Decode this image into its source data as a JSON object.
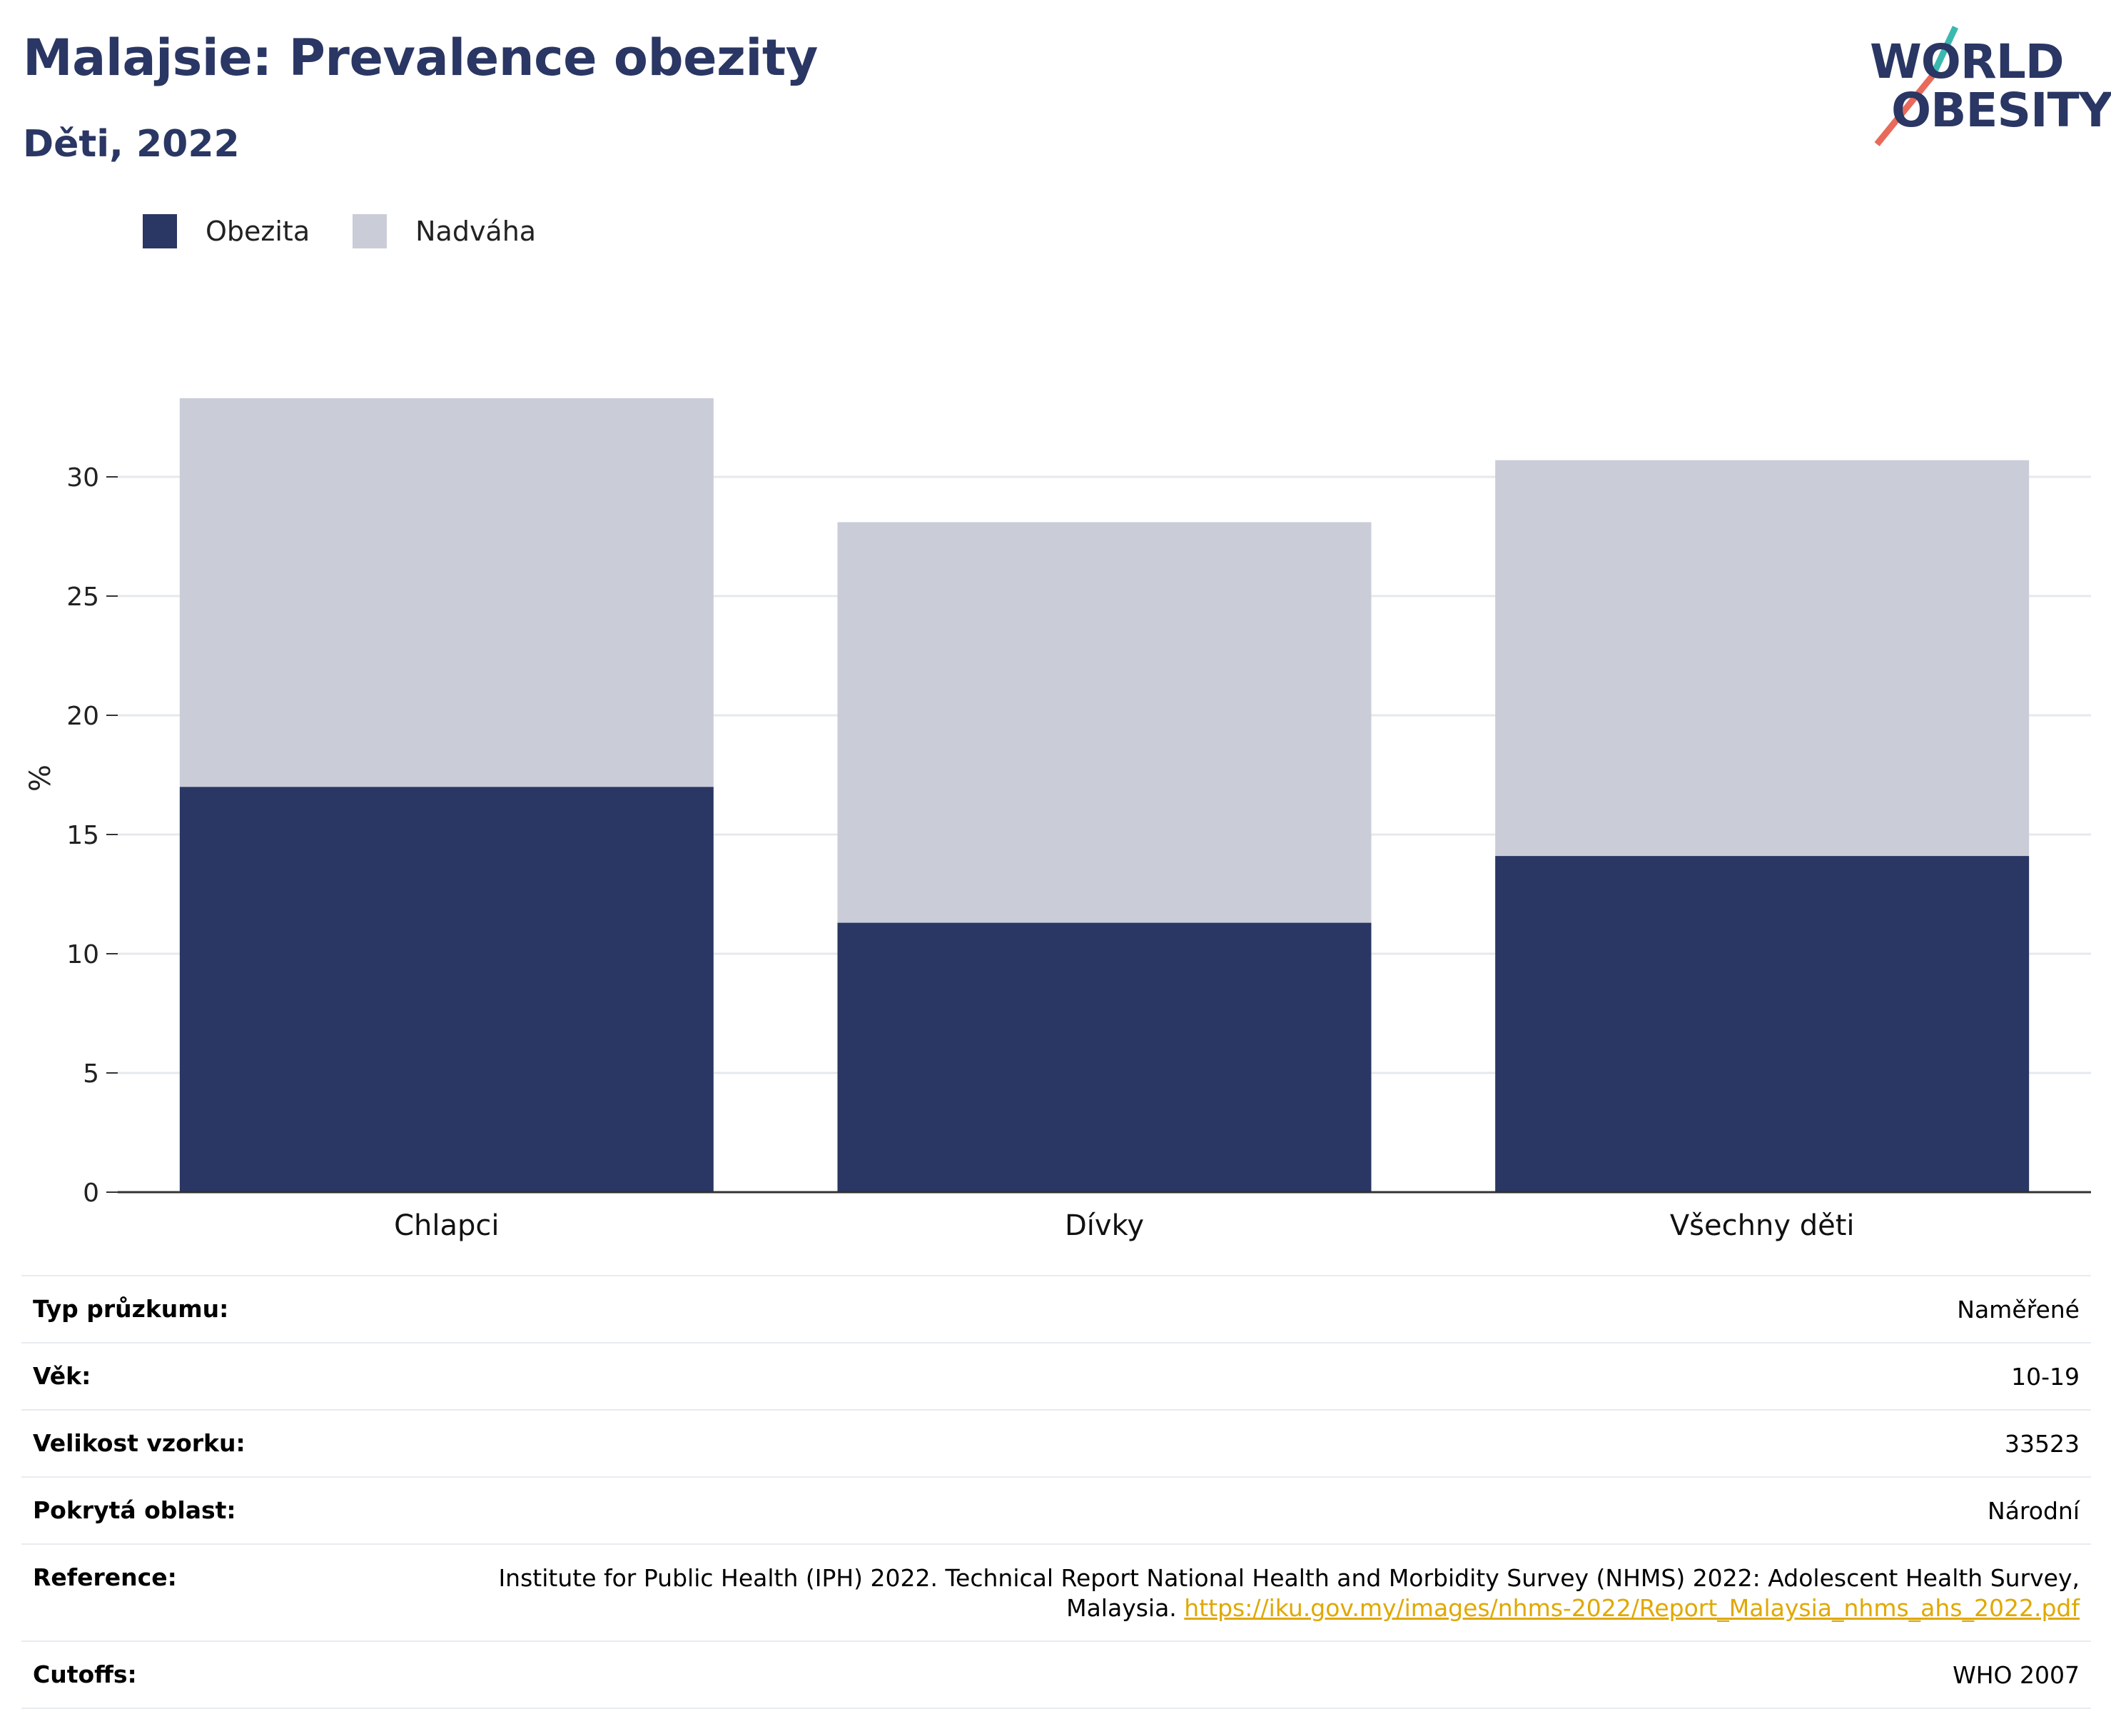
{
  "header": {
    "title": "Malajsie: Prevalence obezity",
    "subtitle": "Děti, 2022"
  },
  "logo": {
    "line1": "WORLD",
    "line2": "OBESITY"
  },
  "colors": {
    "obesity": "#2a3663",
    "overweight": "#cacdd8",
    "logo_teal": "#3bb9b0",
    "logo_coral": "#e86a5a",
    "link": "#e0a800"
  },
  "legend": [
    {
      "label": "Obezita",
      "color": "#2a3663"
    },
    {
      "label": "Nadváha",
      "color": "#cacdd8"
    }
  ],
  "chart_data": {
    "type": "bar",
    "stacked": true,
    "categories": [
      "Chlapci",
      "Dívky",
      "Všechny děti"
    ],
    "series": [
      {
        "name": "Obezita",
        "values": [
          17.0,
          11.3,
          14.1
        ]
      },
      {
        "name": "Nadváha",
        "values": [
          16.3,
          16.8,
          16.6
        ]
      }
    ],
    "ylabel": "%",
    "ylim": [
      0,
      33.3
    ],
    "yticks": [
      0,
      5,
      10,
      15,
      20,
      25,
      30
    ],
    "grid": true,
    "legend_position": "top-left"
  },
  "details": [
    {
      "key": "Typ průzkumu:",
      "value": "Naměřené"
    },
    {
      "key": "Věk:",
      "value": "10-19"
    },
    {
      "key": "Velikost vzorku:",
      "value": "33523"
    },
    {
      "key": "Pokrytá oblast:",
      "value": "Národní"
    },
    {
      "key": "Reference:",
      "value": "Institute for Public Health (IPH) 2022. Technical Report National Health and Morbidity Survey (NHMS) 2022: Adolescent Health Survey, Malaysia.",
      "link": "https://iku.gov.my/images/nhms-2022/Report_Malaysia_nhms_ahs_2022.pdf"
    },
    {
      "key": "Cutoffs:",
      "value": "WHO 2007"
    }
  ]
}
